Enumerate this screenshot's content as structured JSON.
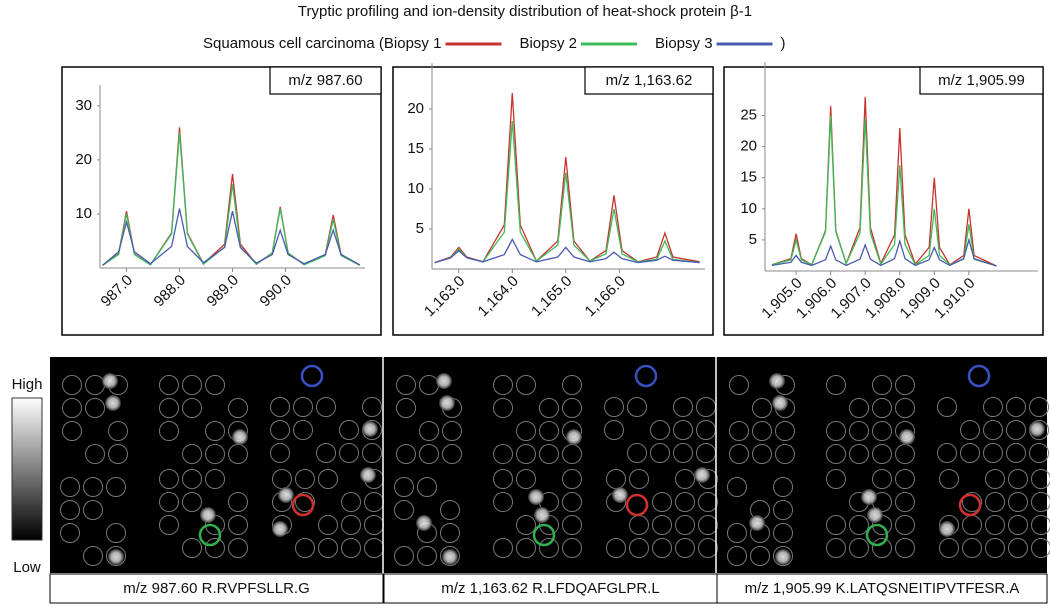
{
  "title": "Tryptic profiling and ion-density distribution of heat-shock protein β-1",
  "legend": {
    "series": [
      {
        "name": "Squamous cell carcinoma (Biopsy 1",
        "color": "#c8322d"
      },
      {
        "name": "Biopsy 2",
        "color": "#3dbb5a"
      },
      {
        "name": "Biopsy 3",
        "color": "#4a5bb0"
      }
    ],
    "close": ")"
  },
  "chart_data": [
    {
      "type": "line",
      "annotation": "m/z 987.60",
      "x": [
        986.55,
        986.85,
        987.0,
        987.15,
        987.45,
        987.85,
        988.0,
        988.15,
        988.45,
        988.85,
        989.0,
        989.15,
        989.45,
        989.75,
        989.9,
        990.05,
        990.35,
        990.75,
        990.9,
        991.05,
        991.4
      ],
      "xlim": [
        986.5,
        991.5
      ],
      "xticks": [
        {
          "value": 987,
          "label": "987.0"
        },
        {
          "value": 988,
          "label": "988.0"
        },
        {
          "value": 989,
          "label": "989.0"
        },
        {
          "value": 990,
          "label": "990.0"
        }
      ],
      "ylim": [
        0,
        32
      ],
      "yticks": [
        10,
        20,
        30
      ],
      "series": [
        {
          "color": "#c8322d",
          "values": [
            0.5,
            2.6,
            10.5,
            2.6,
            0.6,
            6.5,
            26,
            6.5,
            0.8,
            4.4,
            17.4,
            4.4,
            0.7,
            2.8,
            11.3,
            2.8,
            0.6,
            2.5,
            9.8,
            2.5,
            0.5
          ]
        },
        {
          "color": "#3dbb5a",
          "values": [
            0.5,
            2.5,
            10,
            2.5,
            0.6,
            6.3,
            25,
            6.3,
            0.7,
            3.9,
            15.5,
            3.9,
            0.7,
            2.8,
            11,
            2.8,
            0.6,
            2.3,
            9,
            2.3,
            0.5
          ]
        },
        {
          "color": "#4a5bb0",
          "values": [
            0.5,
            3,
            8.5,
            3,
            0.8,
            4,
            11,
            4,
            1,
            3.8,
            10.5,
            3.8,
            0.9,
            2.5,
            7,
            2.5,
            0.8,
            2.5,
            7,
            2.5,
            0.6
          ]
        }
      ]
    },
    {
      "type": "line",
      "annotation": "m/z 1,163.62",
      "x": [
        1162.55,
        1162.85,
        1163.0,
        1163.15,
        1163.45,
        1163.85,
        1164.0,
        1164.15,
        1164.45,
        1164.85,
        1165.0,
        1165.15,
        1165.45,
        1165.75,
        1165.9,
        1166.05,
        1166.35,
        1166.7,
        1166.85,
        1167.0,
        1167.5
      ],
      "xlim": [
        1162.5,
        1167.6
      ],
      "xticks": [
        {
          "value": 1163,
          "label": "1,163.0"
        },
        {
          "value": 1164,
          "label": "1,164.0"
        },
        {
          "value": 1165,
          "label": "1,165.0"
        },
        {
          "value": 1166,
          "label": "1,166.0"
        }
      ],
      "ylim": [
        0,
        24.5
      ],
      "yticks": [
        5,
        10,
        15,
        20
      ],
      "series": [
        {
          "color": "#c8322d",
          "values": [
            0.8,
            1.5,
            2.7,
            1.5,
            0.9,
            5.5,
            22,
            5.5,
            1,
            3.5,
            14,
            3.5,
            1,
            2.3,
            9.2,
            2.3,
            0.9,
            1.5,
            4.5,
            1.5,
            0.9
          ]
        },
        {
          "color": "#3dbb5a",
          "values": [
            0.8,
            1.4,
            2.5,
            1.4,
            0.9,
            4.6,
            18.5,
            4.6,
            1,
            3,
            12,
            3,
            1,
            1.9,
            7.5,
            1.9,
            0.9,
            1.2,
            3.5,
            1.2,
            0.8
          ]
        },
        {
          "color": "#4a5bb0",
          "values": [
            0.8,
            1.4,
            2.3,
            1.4,
            0.9,
            1.8,
            3.7,
            1.8,
            0.9,
            1.5,
            2.7,
            1.5,
            0.9,
            1.3,
            2.1,
            1.3,
            0.8,
            1.1,
            1.6,
            1.1,
            0.8
          ]
        }
      ]
    },
    {
      "type": "line",
      "annotation": "m/z 1,905.99",
      "x": [
        1904.3,
        1904.85,
        1905.0,
        1905.15,
        1905.45,
        1905.85,
        1906.0,
        1906.15,
        1906.45,
        1906.85,
        1907.0,
        1907.15,
        1907.45,
        1907.85,
        1908.0,
        1908.15,
        1908.45,
        1908.85,
        1909.0,
        1909.15,
        1909.45,
        1909.85,
        1910.0,
        1910.15,
        1910.8
      ],
      "xlim": [
        1904.1,
        1912
      ],
      "xticks": [
        {
          "value": 1905,
          "label": "1,905.0"
        },
        {
          "value": 1906,
          "label": "1,906.0"
        },
        {
          "value": 1907,
          "label": "1,907.0"
        },
        {
          "value": 1908,
          "label": "1,908.0"
        },
        {
          "value": 1909,
          "label": "1,909.0"
        },
        {
          "value": 1910,
          "label": "1,910.0"
        }
      ],
      "ylim": [
        0,
        32
      ],
      "yticks": [
        5,
        10,
        15,
        20,
        25
      ],
      "series": [
        {
          "color": "#c8322d",
          "values": [
            1,
            2,
            6,
            2,
            1,
            6.5,
            26.5,
            6.5,
            1.2,
            7,
            28,
            7,
            1.2,
            5.8,
            23,
            5.8,
            1.1,
            3.8,
            15,
            3.8,
            1,
            2.5,
            10,
            2.5,
            0.8
          ]
        },
        {
          "color": "#3dbb5a",
          "values": [
            1,
            1.8,
            5,
            1.8,
            1,
            6.3,
            25,
            6.3,
            1.2,
            6.1,
            24.5,
            6.1,
            1.1,
            4.3,
            17,
            4.3,
            1,
            2.5,
            10,
            2.5,
            1,
            1.9,
            7.5,
            1.9,
            0.8
          ]
        },
        {
          "color": "#4a5bb0",
          "values": [
            0.9,
            1.4,
            2.5,
            1.4,
            0.9,
            1.8,
            4,
            1.8,
            0.9,
            1.9,
            4.2,
            1.9,
            0.9,
            2,
            4.8,
            2,
            0.9,
            1.8,
            3.8,
            1.8,
            0.9,
            2,
            5,
            2,
            0.8
          ]
        }
      ]
    }
  ],
  "colorbar": {
    "high": "High",
    "low": "Low"
  },
  "images": [
    {
      "caption": "m/z 987.60 R.RVPFSLLR.G"
    },
    {
      "caption": "m/z 1,163.62 R.LFDQAFGLPR.L"
    },
    {
      "caption": "m/z 1,905.99 K.LATQSNEITIPVTFESR.A"
    }
  ]
}
